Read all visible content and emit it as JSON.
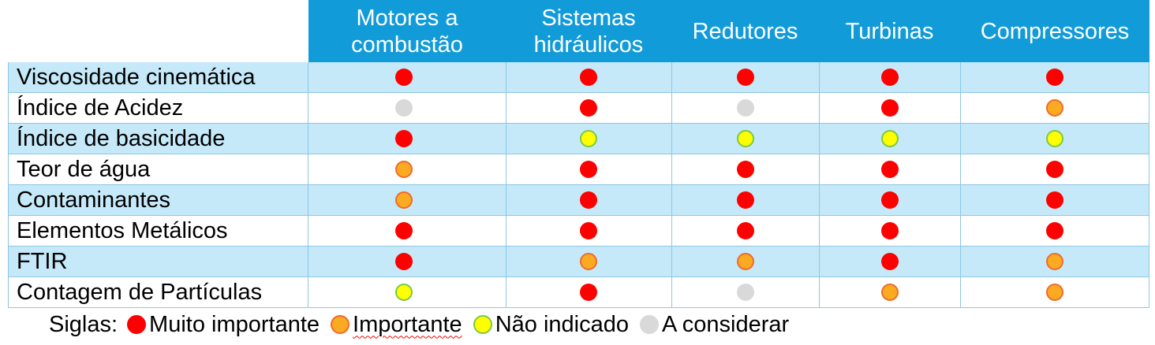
{
  "columns": [
    "Motores a\ncombustão",
    "Sistemas\nhidráulicos",
    "Redutores",
    "Turbinas",
    "Compressores"
  ],
  "rows": [
    {
      "label": "Viscosidade cinemática",
      "ratings": [
        "red",
        "red",
        "red",
        "red",
        "red"
      ]
    },
    {
      "label": "Índice de Acidez",
      "ratings": [
        "gray",
        "red",
        "gray",
        "red",
        "orange"
      ]
    },
    {
      "label": "Índice de basicidade",
      "ratings": [
        "red",
        "yellow",
        "yellow",
        "yellow",
        "yellow"
      ]
    },
    {
      "label": "Teor de água",
      "ratings": [
        "orange",
        "red",
        "red",
        "red",
        "red"
      ]
    },
    {
      "label": "Contaminantes",
      "ratings": [
        "orange",
        "red",
        "red",
        "red",
        "red"
      ]
    },
    {
      "label": "Elementos Metálicos",
      "ratings": [
        "red",
        "red",
        "red",
        "red",
        "red"
      ]
    },
    {
      "label": "FTIR",
      "ratings": [
        "red",
        "orange",
        "orange",
        "red",
        "orange"
      ]
    },
    {
      "label": "Contagem de Partículas",
      "ratings": [
        "yellow",
        "red",
        "gray",
        "orange",
        "orange"
      ]
    }
  ],
  "legend": {
    "prefix": "Siglas:",
    "items": [
      {
        "key": "red",
        "label": "Muito importante"
      },
      {
        "key": "orange",
        "label": "Importante"
      },
      {
        "key": "yellow",
        "label": "Não indicado"
      },
      {
        "key": "gray",
        "label": "A considerar"
      }
    ]
  },
  "colors": {
    "header_bg": "#129bd9",
    "row_shade": "#c5e9f9",
    "grid_line": "#8fc6e3",
    "red": "#ff0000",
    "orange": "#fcaa22",
    "yellow": "#ffff00",
    "gray": "#d9d9d9"
  }
}
